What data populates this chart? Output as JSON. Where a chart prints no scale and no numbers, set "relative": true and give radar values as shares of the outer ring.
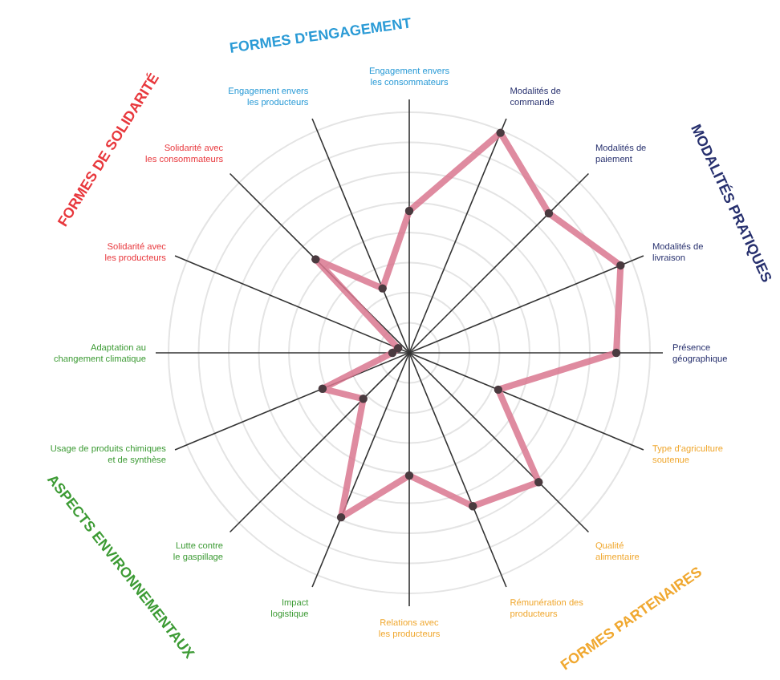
{
  "chart_data": {
    "type": "radar",
    "relative": true,
    "grid": true,
    "marker": "circle",
    "categories": [
      "Engagement envers les consommateurs",
      "Modalités de commande",
      "Modalités de paiement",
      "Modalités de livraison",
      "Présence géographique",
      "Type d'agriculture soutenue",
      "Qualité alimentaire",
      "Rémunération des producteurs",
      "Relations avec les producteurs",
      "Impact logistique",
      "Lutte contre le gaspillage",
      "Usage de produits chimiques et de synthèse",
      "Adaptation au changement climatique",
      "Solidarité avec les producteurs",
      "Solidarité avec les consommateurs",
      "Engagement envers les producteurs"
    ],
    "series": [
      {
        "color": "#d9778f",
        "values": [
          0.59,
          0.99,
          0.82,
          0.95,
          0.86,
          0.4,
          0.76,
          0.69,
          0.51,
          0.74,
          0.27,
          0.39,
          0.07,
          0.05,
          0.55,
          0.29
        ]
      }
    ],
    "annotations": [
      "FORMES D'ENGAGEMENT",
      "MODALITÉS PRATIQUES",
      "FORMES PARTENAIRES",
      "ASPECTS ENVIRONNEMENTAUX",
      "FORMES DE SOLIDARITÉ"
    ]
  }
}
